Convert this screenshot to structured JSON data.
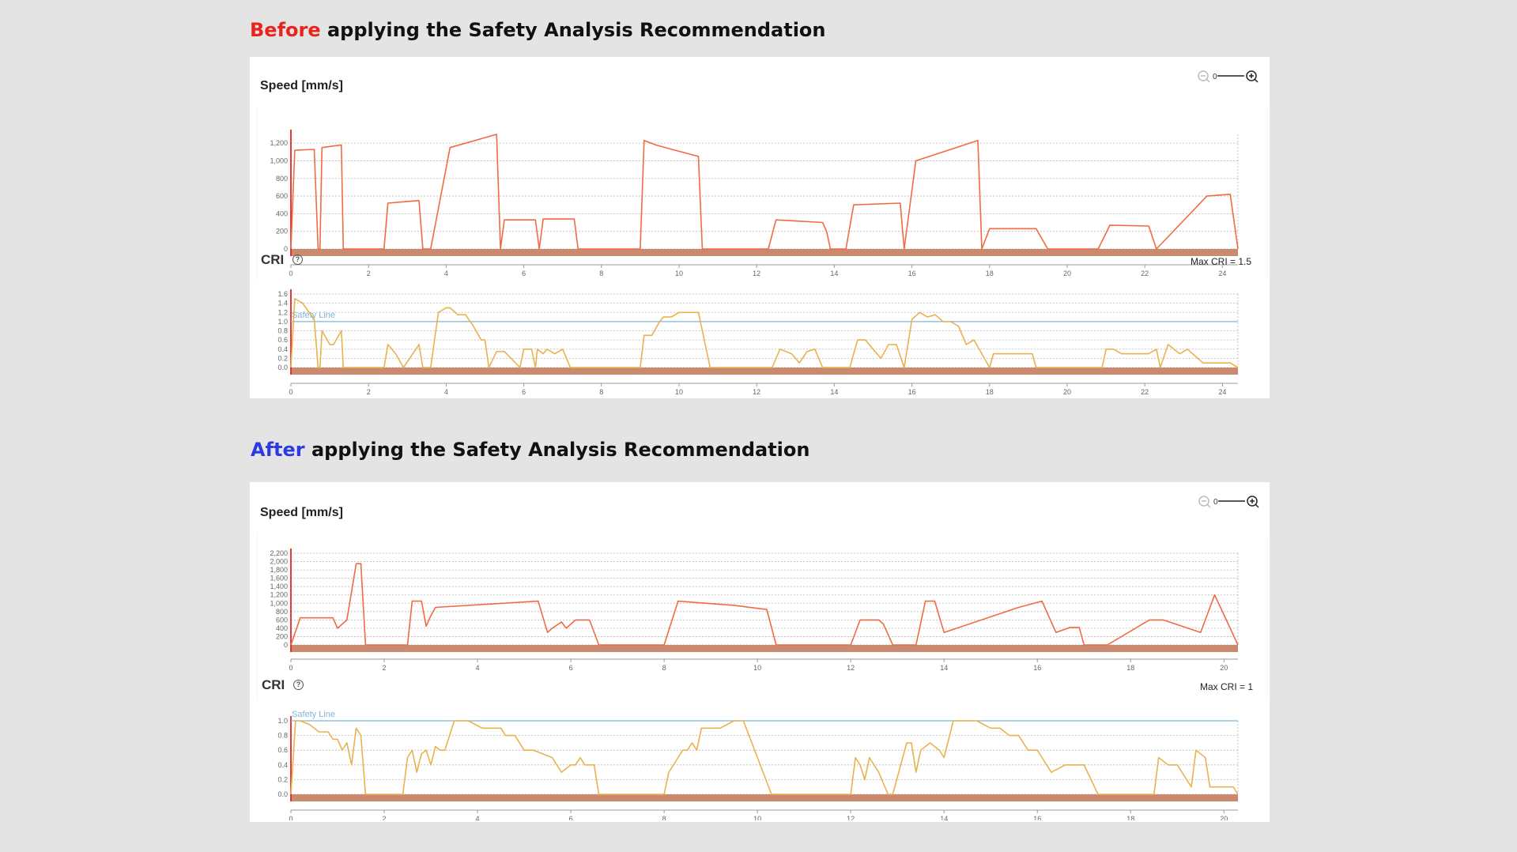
{
  "colors": {
    "before_accent": "#e8241c",
    "after_accent": "#2b3be0",
    "speed_line": "#f06b43",
    "cri_line": "#e9b24f",
    "safety_line": "#7fb6d9",
    "baseline_band": "#c98a70",
    "axis_marker": "#e8241c"
  },
  "icons": {
    "zoom_out": "zoom-out-icon",
    "zoom_in": "zoom-in-icon",
    "help": "help-circle-icon"
  },
  "before": {
    "title_highlight": "Before",
    "title_rest": " applying the Safety Analysis Recommendation",
    "speed_title": "Speed [mm/s]",
    "cri_title": "CRI",
    "max_cri_text": "Max CRI = 1.5",
    "safety_label": "Safety Line",
    "zoom_label": "0"
  },
  "after": {
    "title_highlight": "After",
    "title_rest": " applying the Safety Analysis Recommendation",
    "speed_title": "Speed [mm/s]",
    "cri_title": "CRI",
    "max_cri_text": "Max CRI = 1",
    "safety_label": "Safety Line",
    "zoom_label": "0"
  },
  "chart_data": [
    {
      "id": "before_speed",
      "type": "line",
      "title": "Speed [mm/s]",
      "xlim": [
        0,
        24.4
      ],
      "ylim": [
        0,
        1300
      ],
      "xticks": [
        0,
        2,
        4,
        6,
        8,
        10,
        12,
        14,
        16,
        18,
        20,
        22,
        24
      ],
      "yticks": [
        0,
        200,
        400,
        600,
        800,
        1000,
        1200
      ],
      "ytick_labels": [
        "0",
        "200",
        "400",
        "600",
        "800",
        "1,000",
        "1,200"
      ],
      "grid": true,
      "x": [
        0,
        0.1,
        0.6,
        0.7,
        0.75,
        0.8,
        1.3,
        1.35,
        1.4,
        2.4,
        2.5,
        3.3,
        3.4,
        3.6,
        4.1,
        5.3,
        5.4,
        5.5,
        6.3,
        6.4,
        6.5,
        7.3,
        7.4,
        9.0,
        9.1,
        9.4,
        9.9,
        10.5,
        10.6,
        10.8,
        12.3,
        12.5,
        13.7,
        13.8,
        13.9,
        14.3,
        14.5,
        15.7,
        15.8,
        16.1,
        17.7,
        17.8,
        18.0,
        19.2,
        19.5,
        20.8,
        21.1,
        22.1,
        22.3,
        23.6,
        24.2,
        24.4
      ],
      "y": [
        0,
        1120,
        1130,
        0,
        0,
        1150,
        1180,
        0,
        0,
        0,
        520,
        550,
        0,
        0,
        1150,
        1300,
        0,
        330,
        330,
        0,
        340,
        340,
        0,
        0,
        1230,
        1180,
        1120,
        1050,
        0,
        0,
        0,
        330,
        300,
        200,
        0,
        0,
        500,
        520,
        0,
        1000,
        1230,
        0,
        230,
        230,
        0,
        0,
        270,
        260,
        0,
        600,
        620,
        0
      ]
    },
    {
      "id": "before_cri",
      "type": "line",
      "title": "CRI",
      "xlim": [
        0,
        24.4
      ],
      "ylim": [
        0,
        1.6
      ],
      "xticks": [
        0,
        2,
        4,
        6,
        8,
        10,
        12,
        14,
        16,
        18,
        20,
        22,
        24
      ],
      "yticks": [
        0,
        0.2,
        0.4,
        0.6,
        0.8,
        1.0,
        1.2,
        1.4,
        1.6
      ],
      "ytick_labels": [
        "0.0",
        "0.2",
        "0.4",
        "0.6",
        "0.8",
        "1.0",
        "1.2",
        "1.4",
        "1.6"
      ],
      "safety_line": 1.0,
      "max_cri": 1.5,
      "grid": true,
      "x": [
        0,
        0.1,
        0.3,
        0.6,
        0.7,
        0.75,
        0.8,
        1.0,
        1.1,
        1.3,
        1.35,
        1.4,
        2.4,
        2.5,
        2.7,
        2.9,
        3.3,
        3.4,
        3.5,
        3.6,
        3.8,
        4.0,
        4.1,
        4.3,
        4.5,
        4.7,
        4.9,
        5.0,
        5.1,
        5.3,
        5.4,
        5.5,
        5.9,
        6.0,
        6.2,
        6.3,
        6.35,
        6.5,
        6.6,
        6.8,
        7.0,
        7.2,
        7.3,
        7.4,
        9.0,
        9.1,
        9.3,
        9.5,
        9.6,
        9.8,
        10.0,
        10.2,
        10.5,
        10.8,
        12.4,
        12.6,
        12.9,
        13.1,
        13.3,
        13.5,
        13.7,
        13.9,
        14.4,
        14.6,
        14.8,
        15.0,
        15.2,
        15.4,
        15.6,
        15.8,
        16.0,
        16.2,
        16.4,
        16.6,
        16.8,
        17.0,
        17.2,
        17.4,
        17.6,
        17.8,
        18.0,
        18.1,
        19.1,
        19.2,
        20.9,
        21.0,
        21.2,
        21.4,
        21.9,
        22.1,
        22.3,
        22.4,
        22.6,
        22.9,
        23.1,
        23.5,
        24.0,
        24.2,
        24.4
      ],
      "y": [
        0,
        1.5,
        1.4,
        1.05,
        0,
        0,
        0.8,
        0.5,
        0.5,
        0.8,
        0.0,
        0.0,
        0,
        0.5,
        0.3,
        0.0,
        0.5,
        0.0,
        0.0,
        0.0,
        1.2,
        1.3,
        1.3,
        1.15,
        1.15,
        0.9,
        0.6,
        0.6,
        0.0,
        0.35,
        0.35,
        0.35,
        0.0,
        0.4,
        0.4,
        0.0,
        0.4,
        0.3,
        0.4,
        0.3,
        0.4,
        0.0,
        0.0,
        0,
        0.0,
        0.7,
        0.7,
        1.0,
        1.1,
        1.1,
        1.2,
        1.2,
        1.2,
        0.0,
        0.0,
        0.4,
        0.3,
        0.1,
        0.35,
        0.4,
        0.0,
        0.0,
        0.0,
        0.6,
        0.6,
        0.4,
        0.2,
        0.5,
        0.5,
        0.0,
        1.05,
        1.2,
        1.1,
        1.15,
        1.0,
        1.0,
        0.9,
        0.5,
        0.6,
        0.3,
        0.0,
        0.3,
        0.3,
        0.0,
        0.0,
        0.4,
        0.4,
        0.3,
        0.3,
        0.3,
        0.4,
        0.0,
        0.5,
        0.3,
        0.4,
        0.1,
        0.1,
        0.1,
        0.0
      ]
    },
    {
      "id": "after_speed",
      "type": "line",
      "title": "Speed [mm/s]",
      "xlim": [
        0,
        20.3
      ],
      "ylim": [
        0,
        2200
      ],
      "xticks": [
        0,
        2,
        4,
        6,
        8,
        10,
        12,
        14,
        16,
        18,
        20
      ],
      "yticks": [
        0,
        200,
        400,
        600,
        800,
        1000,
        1200,
        1400,
        1600,
        1800,
        2000,
        2200
      ],
      "ytick_labels": [
        "0",
        "200",
        "400",
        "600",
        "800",
        "1,000",
        "1,200",
        "1,400",
        "1,600",
        "1,800",
        "2,000",
        "2,200"
      ],
      "grid": true,
      "x": [
        0,
        0.2,
        0.9,
        1.0,
        1.2,
        1.4,
        1.5,
        1.6,
        2.5,
        2.6,
        2.8,
        2.9,
        3.0,
        3.1,
        5.3,
        5.5,
        5.6,
        5.8,
        5.9,
        6.1,
        6.4,
        6.6,
        8.0,
        8.3,
        9.5,
        10.2,
        10.4,
        12.0,
        12.2,
        12.6,
        12.7,
        12.9,
        13.4,
        13.6,
        13.8,
        14.0,
        15.6,
        16.1,
        16.4,
        16.7,
        16.9,
        17.0,
        17.5,
        18.4,
        18.7,
        19.5,
        19.8,
        20.3
      ],
      "y": [
        0,
        650,
        650,
        400,
        600,
        1950,
        1950,
        0,
        0,
        1050,
        1050,
        450,
        700,
        900,
        1050,
        300,
        400,
        550,
        400,
        600,
        600,
        0,
        0,
        1050,
        950,
        850,
        0,
        0,
        600,
        600,
        500,
        0,
        0,
        1050,
        1050,
        300,
        900,
        1050,
        300,
        420,
        420,
        0,
        0,
        600,
        600,
        300,
        1200,
        0
      ]
    },
    {
      "id": "after_cri",
      "type": "line",
      "title": "CRI",
      "xlim": [
        0,
        20.3
      ],
      "ylim": [
        0,
        1.0
      ],
      "xticks": [
        0,
        2,
        4,
        6,
        8,
        10,
        12,
        14,
        16,
        18,
        20
      ],
      "yticks": [
        0,
        0.2,
        0.4,
        0.6,
        0.8,
        1.0
      ],
      "ytick_labels": [
        "0.0",
        "0.2",
        "0.4",
        "0.6",
        "0.8",
        "1.0"
      ],
      "safety_line": 1.0,
      "max_cri": 1.0,
      "grid": true,
      "x": [
        0,
        0.1,
        0.2,
        0.4,
        0.6,
        0.8,
        0.9,
        1.0,
        1.1,
        1.2,
        1.3,
        1.4,
        1.5,
        1.6,
        2.4,
        2.5,
        2.6,
        2.7,
        2.8,
        2.9,
        3.0,
        3.1,
        3.2,
        3.3,
        3.5,
        3.7,
        3.8,
        4.1,
        4.3,
        4.5,
        4.6,
        4.8,
        5.0,
        5.2,
        5.6,
        5.7,
        5.8,
        6.0,
        6.1,
        6.2,
        6.3,
        6.5,
        6.6,
        8.0,
        8.1,
        8.3,
        8.4,
        8.5,
        8.6,
        8.7,
        8.8,
        9.0,
        9.2,
        9.5,
        9.7,
        10.3,
        10.5,
        12.0,
        12.1,
        12.2,
        12.3,
        12.4,
        12.6,
        12.8,
        12.9,
        13.2,
        13.3,
        13.4,
        13.5,
        13.7,
        13.9,
        14.0,
        14.2,
        14.5,
        14.7,
        15.0,
        15.2,
        15.4,
        15.6,
        15.8,
        16.0,
        16.1,
        16.3,
        16.6,
        16.8,
        17.0,
        17.3,
        18.5,
        18.6,
        18.8,
        19.0,
        19.3,
        19.4,
        19.6,
        19.7,
        20.2,
        20.3
      ],
      "y": [
        0,
        1.0,
        1.0,
        0.95,
        0.85,
        0.85,
        0.75,
        0.75,
        0.6,
        0.7,
        0.4,
        0.9,
        0.8,
        0.0,
        0.0,
        0.5,
        0.6,
        0.3,
        0.55,
        0.6,
        0.4,
        0.65,
        0.6,
        0.6,
        1.0,
        1.0,
        1.0,
        0.9,
        0.9,
        0.9,
        0.8,
        0.8,
        0.6,
        0.6,
        0.5,
        0.4,
        0.3,
        0.4,
        0.4,
        0.5,
        0.4,
        0.4,
        0.0,
        0.0,
        0.3,
        0.5,
        0.6,
        0.6,
        0.7,
        0.6,
        0.9,
        0.9,
        0.9,
        1.0,
        1.0,
        0.0,
        0.0,
        0.0,
        0.5,
        0.4,
        0.2,
        0.5,
        0.3,
        0.0,
        0.0,
        0.7,
        0.7,
        0.3,
        0.6,
        0.7,
        0.6,
        0.5,
        1.0,
        1.0,
        1.0,
        0.9,
        0.9,
        0.8,
        0.8,
        0.6,
        0.6,
        0.5,
        0.3,
        0.4,
        0.4,
        0.4,
        0.0,
        0.0,
        0.5,
        0.4,
        0.4,
        0.1,
        0.6,
        0.5,
        0.1,
        0.1,
        0.0
      ]
    }
  ]
}
